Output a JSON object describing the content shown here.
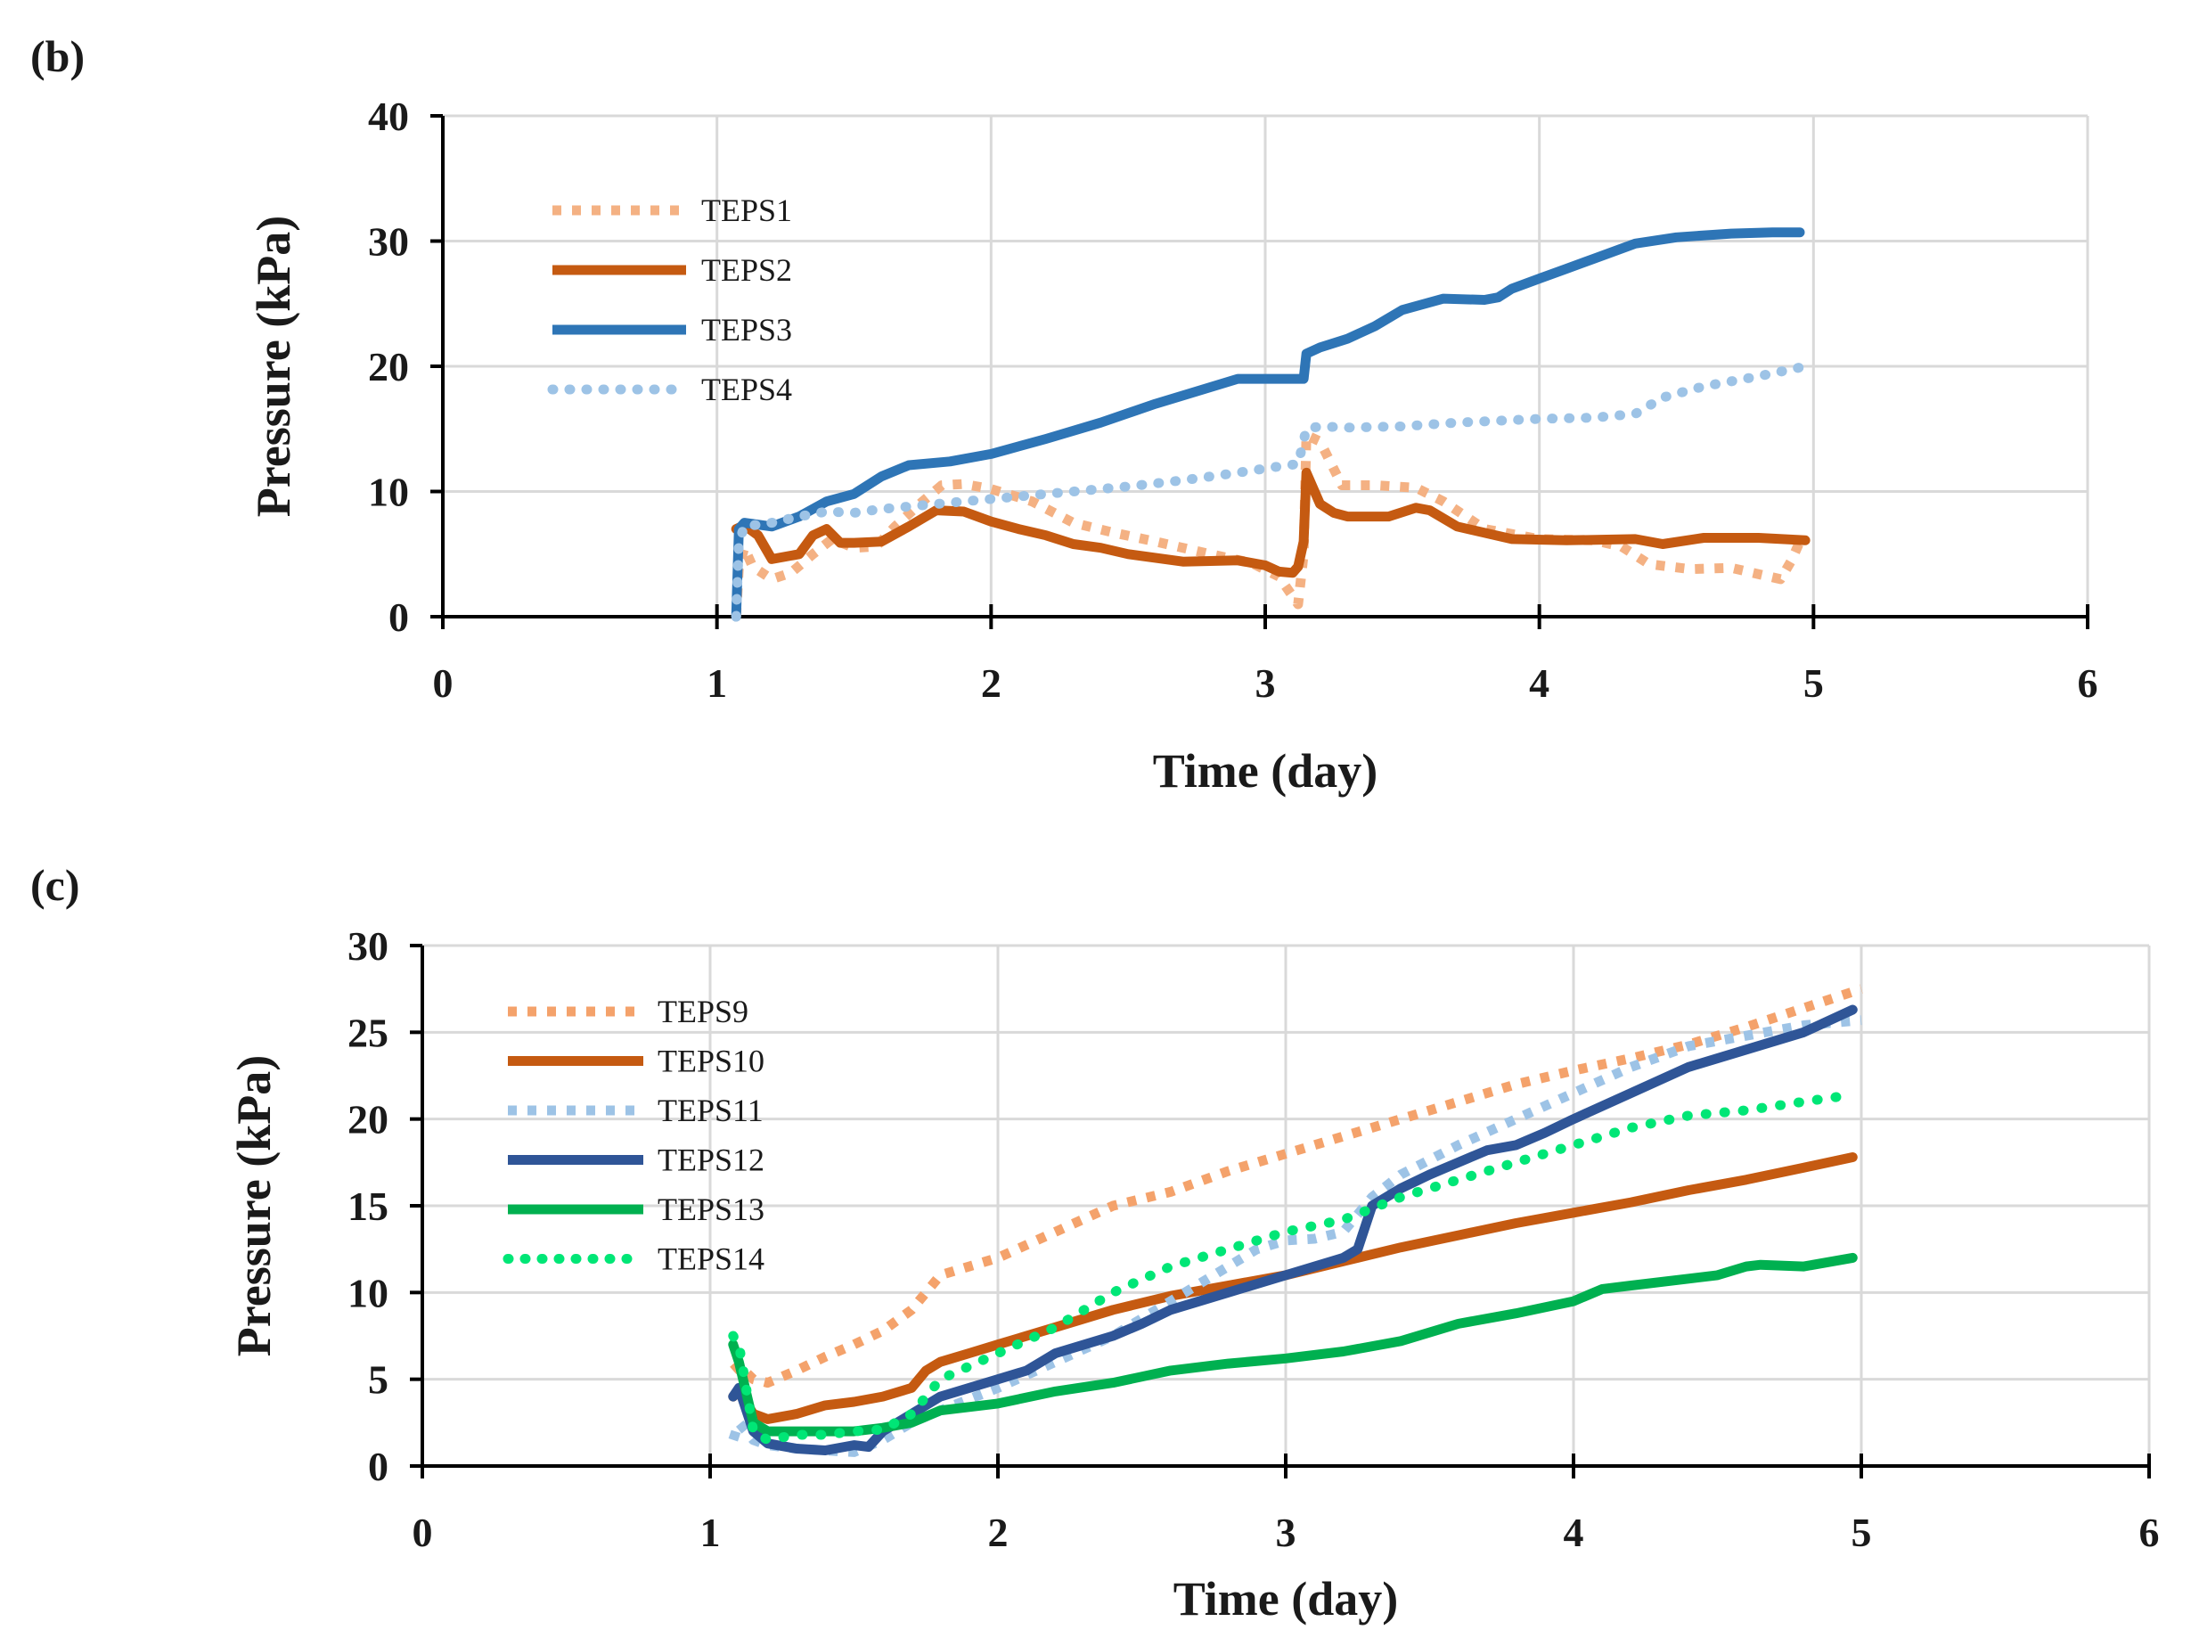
{
  "chart_data": [
    {
      "panel": "(b)",
      "type": "line",
      "xlabel": "Time (day)",
      "ylabel": "Pressure (kPa)",
      "xlim": [
        0,
        6
      ],
      "ylim": [
        0,
        40
      ],
      "xticks": [
        0,
        1,
        2,
        3,
        4,
        5,
        6
      ],
      "yticks": [
        0,
        10,
        20,
        30,
        40
      ],
      "grid": true,
      "legend": "top-left",
      "series": [
        {
          "name": "TEPS1",
          "color": "#f4b183",
          "style": "dotted",
          "x": [
            1.07,
            1.08,
            1.1,
            1.13,
            1.2,
            1.27,
            1.35,
            1.42,
            1.5,
            1.58,
            1.65,
            1.75,
            1.82,
            1.9,
            2.0,
            2.15,
            2.3,
            2.45,
            2.6,
            2.8,
            2.95,
            3.05,
            3.12,
            3.14,
            3.15,
            3.2,
            3.28,
            3.4,
            3.55,
            3.65,
            3.8,
            4.0,
            4.2,
            4.3,
            4.4,
            4.55,
            4.7,
            4.88,
            4.92,
            4.95
          ],
          "y": [
            0,
            4,
            5.5,
            4,
            3,
            3.5,
            5,
            6.2,
            5.5,
            5.6,
            7.2,
            9.2,
            10.5,
            10.6,
            10.2,
            9.2,
            7.5,
            6.7,
            6,
            5,
            4.3,
            3.2,
            1,
            5,
            14.5,
            14,
            10.5,
            10.5,
            10.3,
            9.2,
            7,
            6.2,
            6.1,
            5.6,
            4.2,
            3.8,
            3.9,
            3,
            4.5,
            6
          ]
        },
        {
          "name": "TEPS2",
          "color": "#c55a11",
          "style": "solid",
          "x": [
            1.07,
            1.1,
            1.15,
            1.2,
            1.3,
            1.35,
            1.4,
            1.45,
            1.5,
            1.6,
            1.7,
            1.8,
            1.9,
            2.0,
            2.1,
            2.2,
            2.3,
            2.4,
            2.5,
            2.7,
            2.9,
            3.0,
            3.05,
            3.1,
            3.12,
            3.14,
            3.15,
            3.2,
            3.25,
            3.3,
            3.45,
            3.55,
            3.6,
            3.7,
            3.9,
            4.1,
            4.35,
            4.45,
            4.6,
            4.8,
            4.97
          ],
          "y": [
            7,
            7.3,
            6.5,
            4.6,
            5,
            6.5,
            7,
            5.9,
            5.9,
            6,
            7.2,
            8.5,
            8.4,
            7.6,
            7,
            6.5,
            5.8,
            5.5,
            5,
            4.4,
            4.5,
            4.1,
            3.6,
            3.5,
            4,
            6,
            11.5,
            9,
            8.3,
            8,
            8,
            8.7,
            8.5,
            7.2,
            6.2,
            6.1,
            6.2,
            5.8,
            6.3,
            6.3,
            6.1
          ]
        },
        {
          "name": "TEPS3",
          "color": "#2e75b6",
          "style": "solid",
          "x": [
            1.07,
            1.08,
            1.1,
            1.2,
            1.3,
            1.4,
            1.5,
            1.6,
            1.7,
            1.85,
            2.0,
            2.2,
            2.4,
            2.6,
            2.75,
            2.9,
            3.0,
            3.1,
            3.14,
            3.15,
            3.2,
            3.3,
            3.4,
            3.5,
            3.65,
            3.8,
            3.85,
            3.9,
            4.0,
            4.1,
            4.2,
            4.35,
            4.5,
            4.7,
            4.85,
            4.95
          ],
          "y": [
            0,
            7,
            7.5,
            7.2,
            8,
            9.2,
            9.8,
            11.2,
            12.1,
            12.4,
            13,
            14.2,
            15.5,
            17,
            18,
            19,
            19,
            19,
            19,
            21,
            21.5,
            22.2,
            23.2,
            24.5,
            25.4,
            25.3,
            25.5,
            26.2,
            27,
            27.8,
            28.6,
            29.8,
            30.3,
            30.6,
            30.7,
            30.7
          ]
        },
        {
          "name": "TEPS4",
          "color": "#9dc3e6",
          "style": "dotted",
          "x": [
            1.07,
            1.08,
            1.1,
            1.2,
            1.3,
            1.4,
            1.5,
            1.6,
            1.7,
            1.9,
            2.1,
            2.3,
            2.5,
            2.7,
            2.9,
            3.05,
            3.12,
            3.15,
            3.2,
            3.3,
            3.5,
            3.7,
            4.0,
            4.2,
            4.35,
            4.45,
            4.6,
            4.8,
            4.95
          ],
          "y": [
            0,
            6,
            7.2,
            7.5,
            8,
            8.4,
            8.3,
            8.6,
            8.8,
            9.2,
            9.6,
            10,
            10.4,
            10.9,
            11.5,
            12,
            12.2,
            15,
            15.2,
            15.1,
            15.2,
            15.5,
            15.8,
            15.9,
            16.2,
            17.5,
            18.4,
            19.2,
            19.9
          ]
        }
      ]
    },
    {
      "panel": "(c)",
      "type": "line",
      "xlabel": "Time (day)",
      "ylabel": "Pressure (kPa)",
      "xlim": [
        0,
        6
      ],
      "ylim": [
        0,
        30
      ],
      "xticks": [
        0,
        1,
        2,
        3,
        4,
        5,
        6
      ],
      "yticks": [
        0,
        5,
        10,
        15,
        20,
        25,
        30
      ],
      "grid": true,
      "legend": "top-left",
      "series": [
        {
          "name": "TEPS9",
          "color": "#f4a26b",
          "style": "dotted",
          "x": [
            1.08,
            1.1,
            1.15,
            1.2,
            1.3,
            1.4,
            1.5,
            1.6,
            1.7,
            1.75,
            1.8,
            1.9,
            2.0,
            2.2,
            2.4,
            2.6,
            2.8,
            3.0,
            3.2,
            3.4,
            3.6,
            3.8,
            4.0,
            4.2,
            4.4,
            4.6,
            4.8,
            5.0
          ],
          "y": [
            5.5,
            5.8,
            5,
            4.8,
            5.5,
            6.3,
            7,
            7.8,
            9,
            10,
            11,
            11.5,
            12,
            13.5,
            15,
            15.8,
            17,
            18,
            19,
            20,
            21,
            22,
            22.8,
            23.5,
            24.3,
            25.3,
            26.4,
            27.5
          ]
        },
        {
          "name": "TEPS10",
          "color": "#c55a11",
          "style": "solid",
          "x": [
            1.08,
            1.1,
            1.15,
            1.2,
            1.3,
            1.4,
            1.5,
            1.6,
            1.7,
            1.75,
            1.8,
            1.9,
            2.0,
            2.2,
            2.4,
            2.6,
            2.8,
            3.0,
            3.2,
            3.4,
            3.6,
            3.8,
            4.0,
            4.2,
            4.4,
            4.6,
            4.8,
            4.97
          ],
          "y": [
            4,
            4.3,
            3,
            2.7,
            3,
            3.5,
            3.7,
            4,
            4.5,
            5.5,
            6,
            6.5,
            7,
            8,
            9,
            9.8,
            10.4,
            11,
            11.8,
            12.6,
            13.3,
            14,
            14.6,
            15.2,
            15.9,
            16.5,
            17.2,
            17.8
          ]
        },
        {
          "name": "TEPS11",
          "color": "#9dc3e6",
          "style": "dotted",
          "x": [
            1.08,
            1.1,
            1.15,
            1.2,
            1.3,
            1.4,
            1.5,
            1.6,
            1.7,
            1.8,
            2.0,
            2.2,
            2.4,
            2.6,
            2.8,
            2.9,
            3.0,
            3.1,
            3.2,
            3.3,
            3.4,
            3.6,
            3.8,
            4.0,
            4.2,
            4.4,
            4.6,
            4.8,
            5.0
          ],
          "y": [
            1.5,
            2.5,
            1.5,
            1.2,
            1,
            0.9,
            0.8,
            1.5,
            2.5,
            3.2,
            4.5,
            6,
            7.5,
            9.5,
            11.5,
            12.5,
            13,
            13.1,
            13.5,
            15.5,
            16.8,
            18.5,
            20,
            21.5,
            23,
            24.2,
            24.8,
            25.4,
            25.7
          ]
        },
        {
          "name": "TEPS12",
          "color": "#2f5597",
          "style": "solid",
          "x": [
            1.08,
            1.1,
            1.15,
            1.2,
            1.3,
            1.4,
            1.5,
            1.55,
            1.6,
            1.7,
            1.8,
            2.0,
            2.1,
            2.2,
            2.4,
            2.5,
            2.6,
            2.8,
            3.0,
            3.1,
            3.2,
            3.25,
            3.3,
            3.4,
            3.5,
            3.6,
            3.7,
            3.8,
            3.9,
            4.0,
            4.2,
            4.4,
            4.6,
            4.8,
            4.97
          ],
          "y": [
            4,
            4.5,
            2,
            1.3,
            1,
            0.9,
            1.2,
            1.1,
            2,
            3,
            4,
            5,
            5.5,
            6.5,
            7.5,
            8.2,
            9,
            10,
            11,
            11.5,
            12,
            12.5,
            15,
            16,
            16.8,
            17.5,
            18.2,
            18.5,
            19.2,
            20,
            21.5,
            23,
            24,
            25,
            26.3
          ]
        },
        {
          "name": "TEPS13",
          "color": "#00b050",
          "style": "solid",
          "x": [
            1.08,
            1.1,
            1.15,
            1.2,
            1.3,
            1.4,
            1.5,
            1.6,
            1.7,
            1.8,
            2.0,
            2.2,
            2.4,
            2.6,
            2.8,
            3.0,
            3.2,
            3.4,
            3.6,
            3.8,
            4.0,
            4.1,
            4.2,
            4.4,
            4.5,
            4.6,
            4.65,
            4.8,
            4.97
          ],
          "y": [
            7,
            6,
            2.5,
            2,
            2,
            2,
            2,
            2.2,
            2.5,
            3.2,
            3.6,
            4.3,
            4.8,
            5.5,
            5.9,
            6.2,
            6.6,
            7.2,
            8.2,
            8.8,
            9.5,
            10.2,
            10.4,
            10.8,
            11,
            11.5,
            11.6,
            11.5,
            12
          ]
        },
        {
          "name": "TEPS14",
          "color": "#00e676",
          "style": "dotted",
          "x": [
            1.08,
            1.1,
            1.15,
            1.2,
            1.3,
            1.4,
            1.5,
            1.6,
            1.7,
            1.8,
            2.0,
            2.2,
            2.4,
            2.6,
            2.8,
            3.0,
            3.2,
            3.4,
            3.6,
            3.8,
            4.0,
            4.2,
            4.4,
            4.6,
            4.8,
            4.97
          ],
          "y": [
            7.5,
            7,
            2,
            1.5,
            1.8,
            1.8,
            2,
            2.1,
            3,
            5,
            6.5,
            8,
            10,
            11.5,
            12.5,
            13.5,
            14.2,
            15.5,
            16.5,
            17.5,
            18.5,
            19.5,
            20.2,
            20.5,
            21,
            21.4
          ]
        }
      ]
    }
  ]
}
